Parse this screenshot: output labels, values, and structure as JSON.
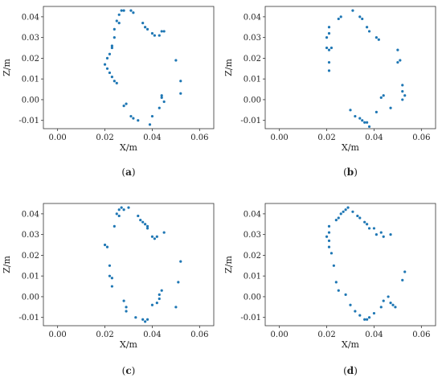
{
  "figure": {
    "marker_color": "#1f77b4",
    "frame_color": "#333333"
  },
  "chart_data": [
    {
      "type": "scatter",
      "caption": "(a)",
      "xlabel": "X/m",
      "ylabel": "Z/m",
      "xlim": [
        -0.006,
        0.066
      ],
      "ylim": [
        -0.014,
        0.045
      ],
      "xticks": [
        "0.00",
        "0.02",
        "0.04",
        "0.06"
      ],
      "yticks": [
        "-0.01",
        "0.00",
        "0.01",
        "0.02",
        "0.03",
        "0.04"
      ],
      "x": [
        0.027,
        0.026,
        0.025,
        0.026,
        0.028,
        0.031,
        0.032,
        0.036,
        0.037,
        0.038,
        0.04,
        0.041,
        0.043,
        0.044,
        0.045,
        0.024,
        0.024,
        0.023,
        0.023,
        0.022,
        0.021,
        0.02,
        0.021,
        0.022,
        0.023,
        0.024,
        0.025,
        0.028,
        0.029,
        0.031,
        0.032,
        0.034,
        0.04,
        0.043,
        0.044,
        0.044,
        0.045,
        0.05,
        0.052,
        0.052,
        0.039
      ],
      "y": [
        0.043,
        0.041,
        0.038,
        0.037,
        0.043,
        0.043,
        0.042,
        0.037,
        0.035,
        0.034,
        0.032,
        0.031,
        0.031,
        0.033,
        0.033,
        0.034,
        0.03,
        0.026,
        0.025,
        0.022,
        0.02,
        0.017,
        0.015,
        0.013,
        0.011,
        0.009,
        0.008,
        -0.003,
        -0.002,
        -0.008,
        -0.009,
        -0.01,
        -0.008,
        -0.004,
        0.001,
        0.002,
        -0.001,
        0.019,
        0.009,
        0.003,
        -0.012
      ]
    },
    {
      "type": "scatter",
      "caption": "(b)",
      "xlabel": "X/m",
      "ylabel": "Z/m",
      "xlim": [
        -0.006,
        0.066
      ],
      "ylim": [
        -0.014,
        0.045
      ],
      "xticks": [
        "0.00",
        "0.02",
        "0.04",
        "0.06"
      ],
      "yticks": [
        "-0.01",
        "0.00",
        "0.01",
        "0.02",
        "0.03",
        "0.04"
      ],
      "x": [
        0.025,
        0.026,
        0.031,
        0.034,
        0.035,
        0.037,
        0.038,
        0.041,
        0.042,
        0.021,
        0.021,
        0.02,
        0.02,
        0.021,
        0.022,
        0.021,
        0.021,
        0.03,
        0.032,
        0.034,
        0.035,
        0.036,
        0.037,
        0.038,
        0.041,
        0.043,
        0.044,
        0.047,
        0.05,
        0.05,
        0.051,
        0.052,
        0.052,
        0.053,
        0.052
      ],
      "y": [
        0.039,
        0.04,
        0.043,
        0.04,
        0.039,
        0.035,
        0.033,
        0.03,
        0.029,
        0.035,
        0.032,
        0.03,
        0.025,
        0.024,
        0.025,
        0.018,
        0.014,
        -0.005,
        -0.008,
        -0.009,
        -0.01,
        -0.011,
        -0.011,
        -0.013,
        -0.006,
        0.001,
        0.002,
        -0.004,
        0.024,
        0.018,
        0.019,
        0.007,
        0.004,
        0.002,
        0.0
      ]
    },
    {
      "type": "scatter",
      "caption": "(c)",
      "xlabel": "X/m",
      "ylabel": "Z/m",
      "xlim": [
        -0.006,
        0.066
      ],
      "ylim": [
        -0.014,
        0.045
      ],
      "xticks": [
        "0.00",
        "0.02",
        "0.04",
        "0.06"
      ],
      "yticks": [
        "-0.01",
        "0.00",
        "0.01",
        "0.02",
        "0.03",
        "0.04"
      ],
      "x": [
        0.025,
        0.026,
        0.026,
        0.027,
        0.028,
        0.03,
        0.034,
        0.035,
        0.036,
        0.037,
        0.038,
        0.038,
        0.04,
        0.041,
        0.042,
        0.045,
        0.024,
        0.02,
        0.021,
        0.022,
        0.022,
        0.023,
        0.023,
        0.028,
        0.029,
        0.029,
        0.033,
        0.036,
        0.037,
        0.038,
        0.04,
        0.042,
        0.043,
        0.043,
        0.044,
        0.05,
        0.052,
        0.051
      ],
      "y": [
        0.04,
        0.042,
        0.039,
        0.043,
        0.042,
        0.043,
        0.039,
        0.037,
        0.036,
        0.035,
        0.034,
        0.033,
        0.029,
        0.028,
        0.029,
        0.031,
        0.034,
        0.025,
        0.024,
        0.015,
        0.01,
        0.009,
        0.005,
        -0.002,
        -0.005,
        -0.007,
        -0.01,
        -0.011,
        -0.012,
        -0.011,
        -0.004,
        -0.003,
        -0.001,
        0.001,
        0.003,
        -0.005,
        0.017,
        0.007
      ]
    },
    {
      "type": "scatter",
      "caption": "(d)",
      "xlabel": "X/m",
      "ylabel": "Z/m",
      "xlim": [
        -0.006,
        0.066
      ],
      "ylim": [
        -0.014,
        0.045
      ],
      "xticks": [
        "0.00",
        "0.02",
        "0.04",
        "0.06"
      ],
      "yticks": [
        "-0.01",
        "0.00",
        "0.01",
        "0.02",
        "0.03",
        "0.04"
      ],
      "x": [
        0.024,
        0.025,
        0.026,
        0.027,
        0.028,
        0.029,
        0.031,
        0.033,
        0.034,
        0.036,
        0.037,
        0.038,
        0.04,
        0.041,
        0.043,
        0.044,
        0.047,
        0.021,
        0.021,
        0.02,
        0.021,
        0.021,
        0.022,
        0.023,
        0.024,
        0.025,
        0.028,
        0.03,
        0.032,
        0.034,
        0.036,
        0.037,
        0.038,
        0.04,
        0.043,
        0.044,
        0.046,
        0.047,
        0.048,
        0.049,
        0.052,
        0.053
      ],
      "y": [
        0.037,
        0.038,
        0.04,
        0.041,
        0.042,
        0.043,
        0.041,
        0.039,
        0.038,
        0.036,
        0.035,
        0.033,
        0.033,
        0.03,
        0.031,
        0.029,
        0.03,
        0.034,
        0.031,
        0.029,
        0.027,
        0.024,
        0.021,
        0.015,
        0.007,
        0.003,
        0.001,
        -0.004,
        -0.007,
        -0.009,
        -0.011,
        -0.011,
        -0.01,
        -0.008,
        -0.005,
        -0.002,
        0.0,
        -0.003,
        -0.004,
        -0.005,
        0.008,
        0.012
      ]
    }
  ]
}
